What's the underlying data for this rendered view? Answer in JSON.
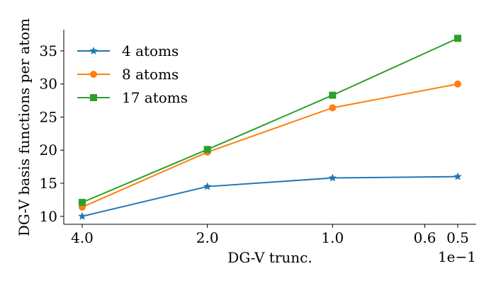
{
  "chart_data": {
    "type": "line",
    "xlabel": "DG-V trunc.",
    "ylabel": "DG-V basis functions per atom",
    "x_scale": "log",
    "x_reversed": true,
    "x_offset_text": "1e−1",
    "x": [
      4.0,
      2.0,
      1.0,
      0.5
    ],
    "x_ticks": [
      4.0,
      2.0,
      1.0,
      0.6,
      0.5
    ],
    "x_tick_labels": [
      "4.0",
      "2.0",
      "1.0",
      "0.6",
      "0.5"
    ],
    "y_ticks": [
      10,
      15,
      20,
      25,
      30,
      35
    ],
    "y_tick_labels": [
      "10",
      "15",
      "20",
      "25",
      "30",
      "35"
    ],
    "ylim": [
      8.8,
      38.2
    ],
    "grid": false,
    "legend_position": "top-left",
    "series": [
      {
        "name": "4 atoms",
        "color": "#1f77b4",
        "marker": "star",
        "values": [
          10.0,
          14.5,
          15.8,
          16.0
        ]
      },
      {
        "name": "8 atoms",
        "color": "#ff7f0e",
        "marker": "circle",
        "values": [
          11.4,
          19.7,
          26.4,
          30.0
        ]
      },
      {
        "name": "17 atoms",
        "color": "#2ca02c",
        "marker": "square",
        "values": [
          12.1,
          20.1,
          28.3,
          36.9
        ]
      }
    ]
  }
}
